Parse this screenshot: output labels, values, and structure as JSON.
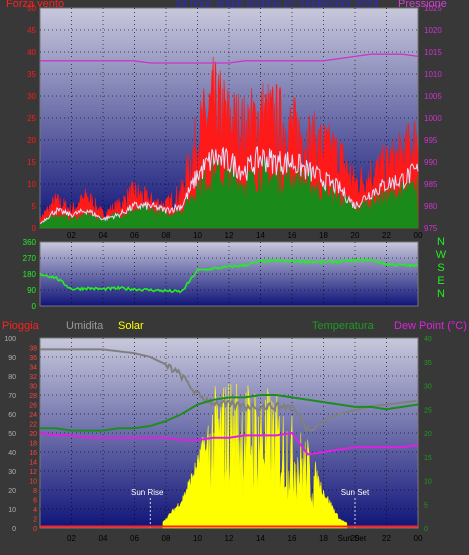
{
  "colors": {
    "background": "#383838",
    "plot_bg_dark": "#101478",
    "plot_bg_light": "#c8c8dc",
    "wind_gust": "#ff1a1a",
    "wind_avg": "#1a8a1a",
    "wind_white": "#e0e0ff",
    "pressure": "#cc33cc",
    "direction": "#22ee22",
    "humidity": "#808080",
    "solar": "#ffff00",
    "temperature": "#1e8c1e",
    "dew_point": "#e020e0",
    "rain": "#ff2020",
    "title": "#2222cc"
  },
  "chart_data": [
    {
      "type": "line",
      "name": "wind_pressure",
      "title": "24 hour graph ending 10 September 2024",
      "left_label": "Forza vento",
      "right_label": "Pressione",
      "y_left_ticks": [
        "0",
        "5",
        "10",
        "15",
        "20",
        "25",
        "30",
        "35",
        "40",
        "45",
        "50"
      ],
      "y_right_ticks": [
        "975",
        "980",
        "985",
        "990",
        "995",
        "1000",
        "1005",
        "1010",
        "1015",
        "1020",
        "1025"
      ],
      "x_ticks": [
        "02",
        "04",
        "06",
        "08",
        "10",
        "12",
        "14",
        "16",
        "18",
        "20",
        "22",
        "00"
      ],
      "ylim_left": [
        0,
        50
      ],
      "ylim_right": [
        975,
        1025
      ],
      "x_hours": [
        0,
        1,
        2,
        3,
        4,
        5,
        6,
        7,
        8,
        9,
        10,
        11,
        12,
        13,
        14,
        15,
        16,
        17,
        18,
        19,
        20,
        21,
        22,
        23,
        24
      ],
      "series": [
        {
          "key": "gust",
          "values": [
            2,
            6,
            4,
            7,
            3,
            5,
            8,
            6,
            5,
            8,
            20,
            28,
            24,
            22,
            25,
            24,
            22,
            20,
            18,
            16,
            10,
            12,
            14,
            16,
            20
          ]
        },
        {
          "key": "avg",
          "values": [
            1,
            3,
            2,
            3,
            2,
            3,
            4,
            4,
            3,
            4,
            9,
            12,
            11,
            10,
            12,
            11,
            11,
            10,
            8,
            7,
            4,
            6,
            7,
            8,
            9
          ]
        },
        {
          "key": "white",
          "values": [
            1,
            4,
            3,
            4,
            2,
            3,
            5,
            5,
            4,
            5,
            12,
            16,
            15,
            13,
            16,
            15,
            15,
            13,
            11,
            9,
            5,
            8,
            10,
            11,
            13
          ]
        },
        {
          "key": "pressure",
          "values": [
            1013,
            1013,
            1013,
            1013,
            1013,
            1013,
            1013,
            1012.5,
            1012.5,
            1012.5,
            1012.5,
            1012.5,
            1012.5,
            1013,
            1013,
            1013,
            1013,
            1013,
            1013,
            1013.5,
            1014,
            1014.5,
            1014.5,
            1014.5,
            1014
          ]
        }
      ]
    },
    {
      "type": "line",
      "name": "wind_direction",
      "y_ticks": [
        "360",
        "270",
        "180",
        "90",
        "0"
      ],
      "ylim": [
        0,
        360
      ],
      "compass": [
        "N",
        "W",
        "S",
        "E",
        "N"
      ],
      "x_hours": [
        0,
        1,
        2,
        3,
        4,
        5,
        6,
        7,
        8,
        9,
        10,
        11,
        12,
        13,
        14,
        15,
        16,
        17,
        18,
        19,
        20,
        21,
        22,
        23,
        24
      ],
      "values": [
        180,
        160,
        95,
        100,
        95,
        100,
        95,
        90,
        85,
        80,
        200,
        210,
        220,
        230,
        250,
        255,
        250,
        250,
        245,
        250,
        255,
        260,
        235,
        230,
        225
      ]
    },
    {
      "type": "area",
      "name": "temp_humidity_solar",
      "labels": {
        "rain": "Pioggia",
        "humidity": "Umidita",
        "solar": "Solar",
        "temperature": "Temperatura",
        "dew_point": "Dew Point (°C)"
      },
      "y_left_ticks": [
        "0",
        "10",
        "20",
        "30",
        "40",
        "50",
        "60",
        "70",
        "80",
        "90",
        "100"
      ],
      "y_mid_ticks": [
        "0",
        "2",
        "4",
        "6",
        "8",
        "10",
        "12",
        "14",
        "16",
        "18",
        "20",
        "22",
        "24",
        "26",
        "28",
        "30",
        "32",
        "34",
        "36",
        "38"
      ],
      "y_right_ticks": [
        "0",
        "5",
        "10",
        "15",
        "20",
        "25",
        "30",
        "35",
        "40"
      ],
      "x_ticks": [
        "02",
        "04",
        "06",
        "08",
        "10",
        "12",
        "14",
        "16",
        "18",
        "20",
        "22",
        "00"
      ],
      "ylim_left": [
        0,
        100
      ],
      "ylim_right": [
        0,
        40
      ],
      "annotations": [
        "Sun Rise",
        "Sun Set",
        "Sun Set"
      ],
      "x_hours": [
        0,
        1,
        2,
        3,
        4,
        5,
        6,
        7,
        8,
        9,
        10,
        11,
        12,
        13,
        14,
        15,
        16,
        17,
        18,
        19,
        20,
        21,
        22,
        23,
        24
      ],
      "humidity": [
        94,
        94,
        94,
        94,
        94,
        93,
        92,
        90,
        86,
        80,
        70,
        66,
        65,
        64,
        64,
        64,
        64,
        52,
        56,
        60,
        62,
        64,
        65,
        66,
        67
      ],
      "temperature": [
        21,
        21,
        20.5,
        20.5,
        20.5,
        21,
        21,
        21.5,
        22.5,
        24,
        26,
        27,
        27.5,
        27.5,
        28,
        28,
        27.5,
        27,
        26.5,
        26,
        25.5,
        25.5,
        25,
        25.5,
        26
      ],
      "dew_point": [
        20,
        19.5,
        19.5,
        19,
        19,
        19,
        19,
        19,
        19,
        18.5,
        18.5,
        19,
        19,
        19.5,
        19.5,
        19.5,
        20,
        15.5,
        16,
        16.5,
        17,
        17,
        17,
        17,
        17.5
      ],
      "solar": [
        0,
        0,
        0,
        0,
        0,
        0,
        0,
        0,
        5,
        15,
        35,
        62,
        68,
        66,
        64,
        60,
        50,
        40,
        20,
        5,
        0,
        0,
        0,
        0,
        0
      ],
      "rain": [
        1,
        1,
        1,
        1,
        1,
        1,
        1,
        1,
        1,
        1,
        1,
        1,
        1,
        1,
        1,
        1,
        1,
        1,
        1,
        1,
        1,
        1,
        1,
        1,
        1
      ]
    }
  ]
}
